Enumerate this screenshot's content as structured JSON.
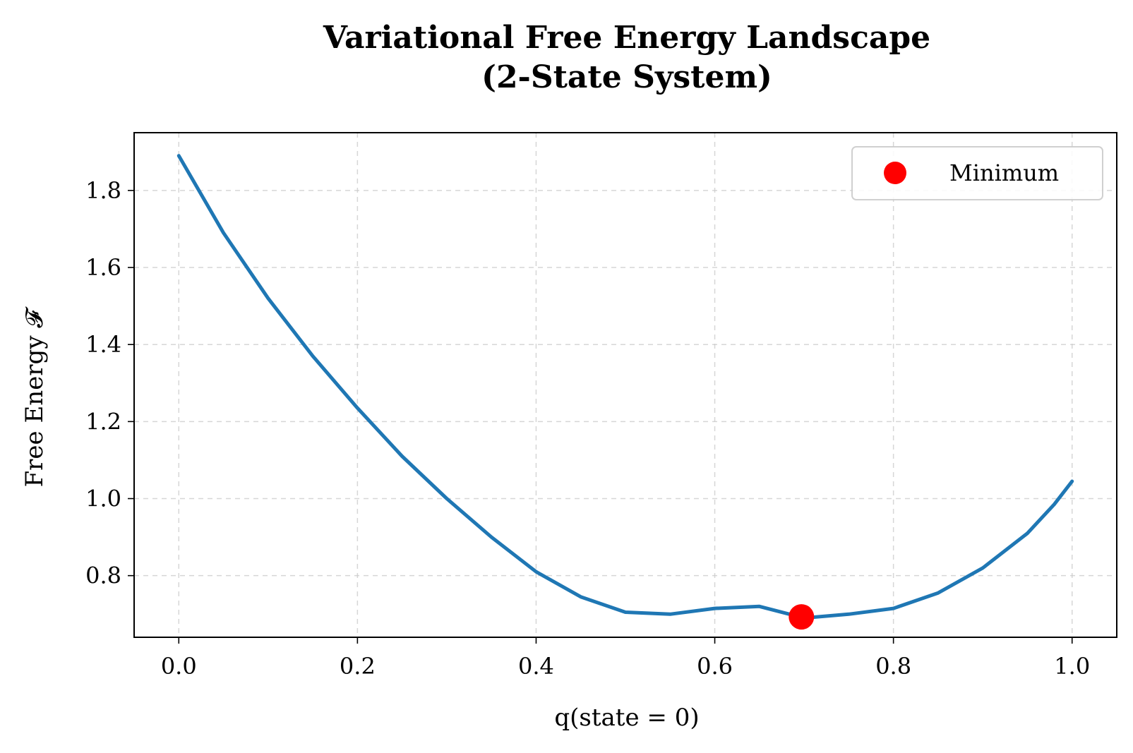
{
  "chart_data": {
    "type": "line",
    "title_lines": [
      "Variational Free Energy Landscape",
      "(2-State System)"
    ],
    "xlabel": "q(state = 0)",
    "ylabel": "Free Energy 𝓕",
    "xlim": [
      -0.05,
      1.05
    ],
    "ylim": [
      0.64,
      1.95
    ],
    "xticks": [
      0.0,
      0.2,
      0.4,
      0.6,
      0.8,
      1.0
    ],
    "xtick_labels": [
      "0.0",
      "0.2",
      "0.4",
      "0.6",
      "0.8",
      "1.0"
    ],
    "yticks": [
      0.8,
      1.0,
      1.2,
      1.4,
      1.6,
      1.8
    ],
    "ytick_labels": [
      "0.8",
      "1.0",
      "1.2",
      "1.4",
      "1.6",
      "1.8"
    ],
    "grid": true,
    "legend_position": "top-right",
    "series": [
      {
        "kind": "line",
        "color": "#1f77b4",
        "x": [
          0.0,
          0.05,
          0.1,
          0.15,
          0.2,
          0.25,
          0.3,
          0.35,
          0.4,
          0.45,
          0.5,
          0.55,
          0.6,
          0.65,
          0.7,
          0.75,
          0.8,
          0.85,
          0.9,
          0.95,
          0.98,
          1.0
        ],
        "y": [
          1.89,
          1.69,
          1.52,
          1.37,
          1.235,
          1.11,
          1.0,
          0.9,
          0.81,
          0.745,
          0.705,
          0.7,
          0.715,
          0.72,
          0.69,
          0.7,
          0.715,
          0.755,
          0.82,
          0.91,
          0.985,
          1.045
        ]
      },
      {
        "kind": "point",
        "name": "Minimum",
        "color": "#ff0000",
        "x": [
          0.697
        ],
        "y": [
          0.693
        ]
      }
    ]
  }
}
